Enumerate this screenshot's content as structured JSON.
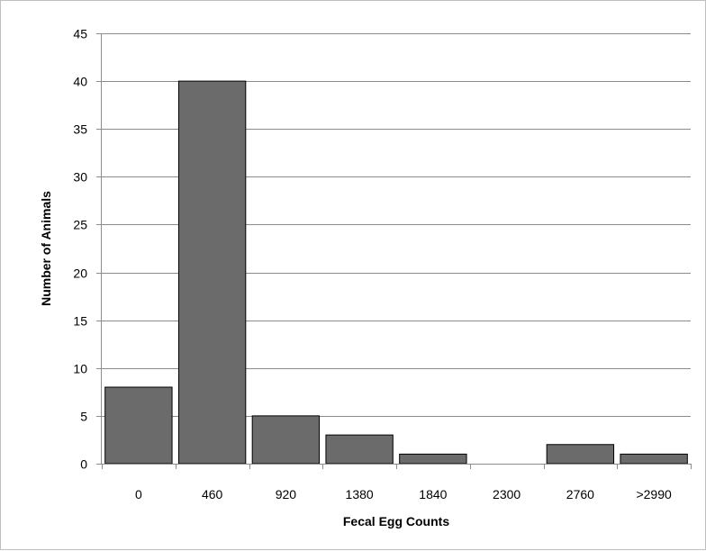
{
  "chart_data": {
    "type": "bar",
    "title": "",
    "xlabel": "Fecal Egg Counts",
    "ylabel": "Number of Animals",
    "categories": [
      "0",
      "460",
      "920",
      "1380",
      "1840",
      "2300",
      "2760",
      ">2990"
    ],
    "values": [
      8,
      40,
      5,
      3,
      1,
      0,
      2,
      1
    ],
    "ylim": [
      0,
      45
    ],
    "yticks": [
      "0",
      "5",
      "10",
      "15",
      "20",
      "25",
      "30",
      "35",
      "40",
      "45"
    ],
    "grid": "horizontal",
    "legend": "none",
    "bar_color": "#6b6b6b",
    "bar_edge_color": "#000000",
    "gridline_color": "#8c8c8c"
  }
}
